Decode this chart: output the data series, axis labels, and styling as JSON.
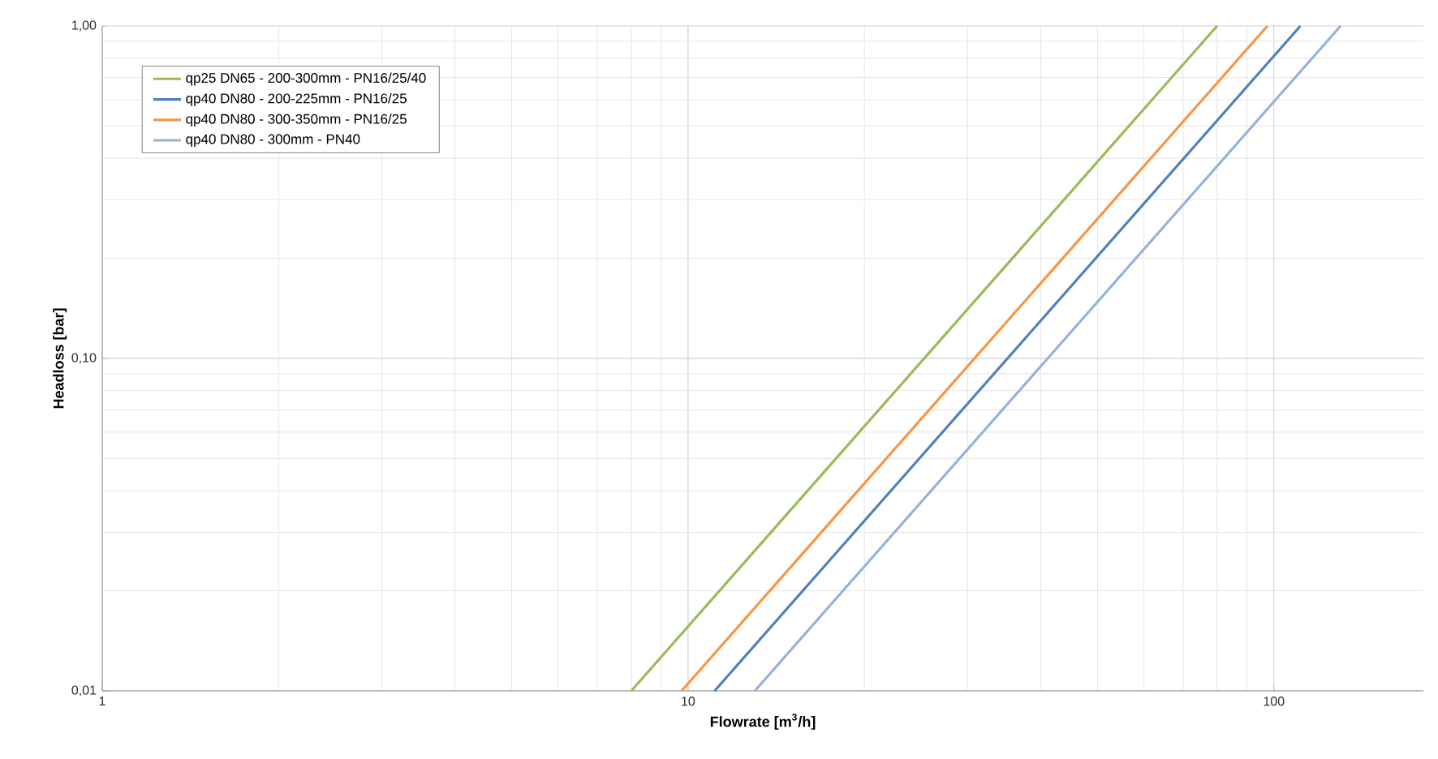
{
  "chart_data": {
    "type": "line",
    "xlabel": "Flowrate [m$^{3}$/h]",
    "ylabel": "Headloss [bar]",
    "log": "xy",
    "grid": true,
    "legend": "top left",
    "marker": "none",
    "line_style": "solid",
    "xlim": [
      1,
      180
    ],
    "xticks": [
      1,
      10,
      100
    ],
    "ylim": [
      0.01,
      1
    ],
    "yticks": [
      {
        "value": 0.01,
        "label": "0,01"
      },
      {
        "value": 0.1,
        "label": "0,10"
      },
      {
        "value": 1,
        "label": "1,00"
      }
    ],
    "series": [
      {
        "name": "qp25 DN65 - 200-300mm - PN16/25/40",
        "color": "#9bbb59",
        "x": [
          8,
          80
        ],
        "values": [
          0.01,
          1
        ]
      },
      {
        "name": "qp40 DN80 - 200-225mm - PN16/25",
        "color": "#4f81bd",
        "x": [
          11.1,
          111
        ],
        "values": [
          0.01,
          1
        ]
      },
      {
        "name": "qp40 DN80 - 300-350mm - PN16/25",
        "color": "#f79646",
        "x": [
          9.75,
          97.5
        ],
        "values": [
          0.01,
          1
        ]
      },
      {
        "name": "qp40 DN80 - 300mm - PN40",
        "color": "#95b3d7",
        "x": [
          13,
          130
        ],
        "values": [
          0.01,
          1
        ]
      }
    ]
  }
}
